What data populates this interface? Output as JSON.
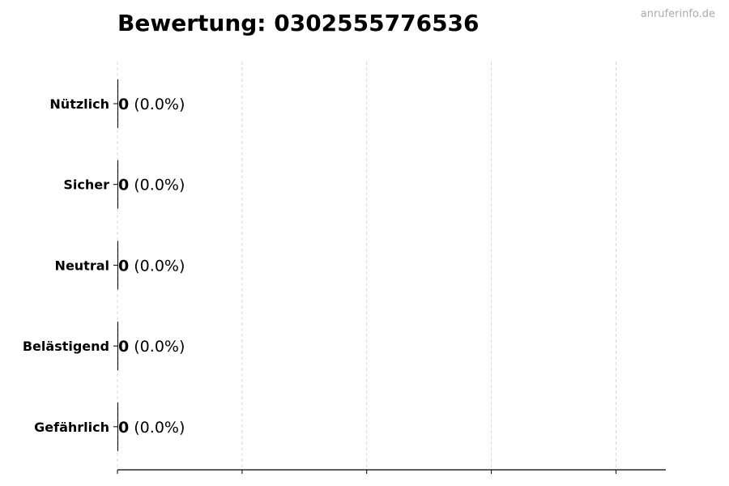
{
  "title": "Bewertung: 0302555776536",
  "watermark": "anruferinfo.de",
  "chart_data": {
    "type": "bar",
    "orientation": "horizontal",
    "title": "Bewertung: 0302555776536",
    "categories": [
      "Nützlich",
      "Sicher",
      "Neutral",
      "Belästigend",
      "Gefährlich"
    ],
    "values": [
      0,
      0,
      0,
      0,
      0
    ],
    "data_labels": [
      {
        "count": "0",
        "pct": "(0.0%)"
      },
      {
        "count": "0",
        "pct": "(0.0%)"
      },
      {
        "count": "0",
        "pct": "(0.0%)"
      },
      {
        "count": "0",
        "pct": "(0.0%)"
      },
      {
        "count": "0",
        "pct": "(0.0%)"
      }
    ],
    "xlabel": "",
    "ylabel": "",
    "xlim": [
      0,
      4.4
    ],
    "xticks": [
      0,
      1,
      2,
      3,
      4
    ],
    "xtick_labels_shown": false,
    "grid": "x dashed",
    "bar_color": "#000000"
  }
}
